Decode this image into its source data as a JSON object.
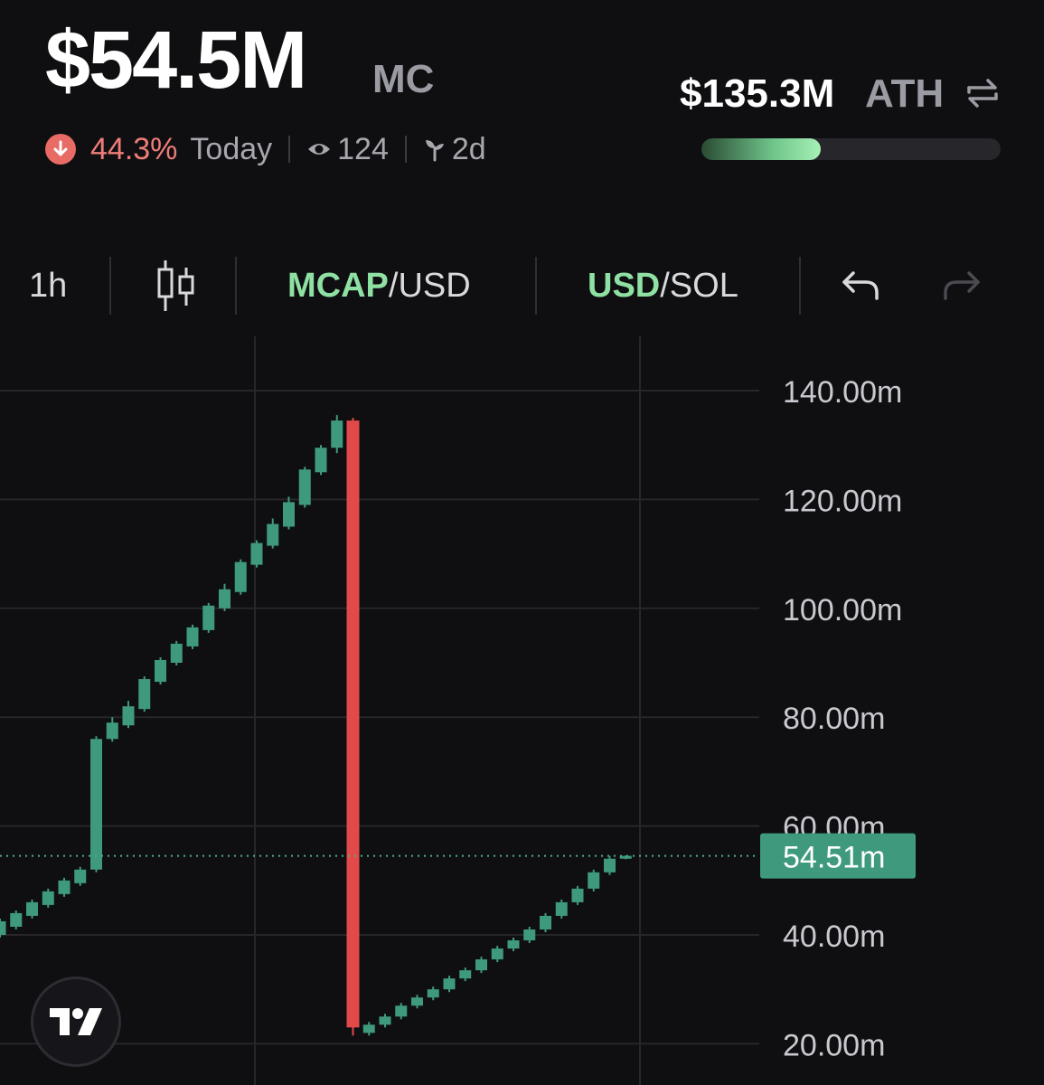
{
  "header": {
    "market_cap": "$54.5M",
    "market_cap_suffix": "MC",
    "change_pct": "44.3%",
    "change_period": "Today",
    "viewers": "124",
    "age": "2d",
    "ath_value": "$135.3M",
    "ath_label": "ATH",
    "ath_progress_pct": 40
  },
  "toolbar": {
    "interval": "1h",
    "mcap_label": "MCAP",
    "mcap_suffix": "/USD",
    "usd_label": "USD",
    "usd_suffix": "/SOL"
  },
  "colors": {
    "up": "#3f9a7d",
    "down": "#e24a4a",
    "accent_green": "#8fe0a3",
    "negative_text": "#ef7d77"
  },
  "chart_data": {
    "type": "candlestick",
    "y_tick_labels": [
      "140.00m",
      "120.00m",
      "100.00m",
      "80.00m",
      "60.00m",
      "40.00m",
      "20.00m"
    ],
    "y_ticks": [
      140,
      120,
      100,
      80,
      60,
      40,
      20
    ],
    "ylim": [
      18,
      146
    ],
    "current_value": 54.51,
    "current_label": "54.51m",
    "candles": [
      {
        "o": 40,
        "c": 42.5,
        "h": 43,
        "l": 39.5
      },
      {
        "o": 41.5,
        "c": 44,
        "h": 44.5,
        "l": 41
      },
      {
        "o": 43.5,
        "c": 46,
        "h": 46.5,
        "l": 43
      },
      {
        "o": 45.5,
        "c": 48,
        "h": 48.5,
        "l": 45
      },
      {
        "o": 47.5,
        "c": 50,
        "h": 50.5,
        "l": 47
      },
      {
        "o": 49.5,
        "c": 52,
        "h": 52.5,
        "l": 49
      },
      {
        "o": 52,
        "c": 76,
        "h": 76.5,
        "l": 51.5
      },
      {
        "o": 76,
        "c": 79,
        "h": 80,
        "l": 75.5
      },
      {
        "o": 78.5,
        "c": 82,
        "h": 83,
        "l": 78
      },
      {
        "o": 81.5,
        "c": 87,
        "h": 87.5,
        "l": 81
      },
      {
        "o": 86.5,
        "c": 90.5,
        "h": 91,
        "l": 86
      },
      {
        "o": 90,
        "c": 93.5,
        "h": 94,
        "l": 89.5
      },
      {
        "o": 93,
        "c": 96.5,
        "h": 97,
        "l": 92.5
      },
      {
        "o": 96,
        "c": 100.5,
        "h": 101,
        "l": 95.5
      },
      {
        "o": 100,
        "c": 103.5,
        "h": 104.5,
        "l": 99.5
      },
      {
        "o": 103,
        "c": 108.5,
        "h": 109,
        "l": 102.5
      },
      {
        "o": 108,
        "c": 112,
        "h": 112.5,
        "l": 107.5
      },
      {
        "o": 111.5,
        "c": 115.5,
        "h": 116.5,
        "l": 111
      },
      {
        "o": 115,
        "c": 119.5,
        "h": 120.5,
        "l": 114.5
      },
      {
        "o": 119,
        "c": 125.5,
        "h": 126,
        "l": 118.5
      },
      {
        "o": 125,
        "c": 129.5,
        "h": 130,
        "l": 124.5
      },
      {
        "o": 129.5,
        "c": 134.5,
        "h": 135.5,
        "l": 128.5
      },
      {
        "o": 134.5,
        "c": 23,
        "h": 135,
        "l": 21.5
      },
      {
        "o": 22,
        "c": 23.5,
        "h": 24,
        "l": 21.5
      },
      {
        "o": 23.5,
        "c": 25,
        "h": 25.5,
        "l": 23
      },
      {
        "o": 25,
        "c": 27,
        "h": 27.5,
        "l": 24.5
      },
      {
        "o": 27,
        "c": 28.5,
        "h": 29,
        "l": 26.5
      },
      {
        "o": 28.5,
        "c": 30,
        "h": 30.5,
        "l": 28
      },
      {
        "o": 30,
        "c": 32,
        "h": 32.5,
        "l": 29.5
      },
      {
        "o": 32,
        "c": 33.5,
        "h": 34,
        "l": 31.5
      },
      {
        "o": 33.5,
        "c": 35.5,
        "h": 36,
        "l": 33
      },
      {
        "o": 35.5,
        "c": 37.5,
        "h": 38,
        "l": 35
      },
      {
        "o": 37.5,
        "c": 39,
        "h": 39.5,
        "l": 37
      },
      {
        "o": 39,
        "c": 41,
        "h": 41.5,
        "l": 38.5
      },
      {
        "o": 41,
        "c": 43.5,
        "h": 44,
        "l": 40.5
      },
      {
        "o": 43.5,
        "c": 46,
        "h": 46.5,
        "l": 43
      },
      {
        "o": 46,
        "c": 48.5,
        "h": 49,
        "l": 45.5
      },
      {
        "o": 48.5,
        "c": 51.5,
        "h": 52,
        "l": 48
      },
      {
        "o": 51.5,
        "c": 54,
        "h": 54.5,
        "l": 51
      },
      {
        "o": 54,
        "c": 54.51,
        "h": 54.6,
        "l": 53.9
      }
    ]
  }
}
